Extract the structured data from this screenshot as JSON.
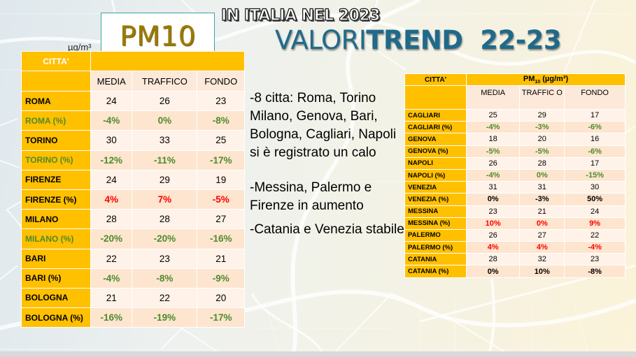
{
  "header": {
    "unit": "µg/m³",
    "pm10_badge": "PM10",
    "subtitle": "IN ITALIA NEL 2023",
    "title_part1": "VALORI",
    "title_part2": "TREND  22-23"
  },
  "colors": {
    "header_fill": "#ffc000",
    "decrease": "#4e8a2c",
    "increase": "#ff0000",
    "stable": "#000000",
    "title": "#1f6a8a"
  },
  "left_table": {
    "city_header": "CITTA'",
    "columns": [
      "MEDIA",
      "TRAFFICO",
      "FONDO"
    ],
    "rows": [
      {
        "city": "ROMA",
        "values": [
          "24",
          "26",
          "23"
        ],
        "style": "plain"
      },
      {
        "city": "ROMA (%)",
        "values": [
          "-4%",
          "0%",
          "-8%"
        ],
        "style": "green",
        "city_style": "green"
      },
      {
        "city": "TORINO",
        "values": [
          "30",
          "33",
          "25"
        ],
        "style": "plain"
      },
      {
        "city": "TORINO (%)",
        "values": [
          "-12%",
          "-11%",
          "-17%"
        ],
        "style": "green",
        "city_style": "green"
      },
      {
        "city": "FIRENZE",
        "values": [
          "24",
          "29",
          "19"
        ],
        "style": "plain"
      },
      {
        "city": "FIRENZE (%)",
        "values": [
          "4%",
          "7%",
          "-5%"
        ],
        "style": "red"
      },
      {
        "city": "MILANO",
        "values": [
          "28",
          "28",
          "27"
        ],
        "style": "plain"
      },
      {
        "city": "MILANO (%)",
        "values": [
          "-20%",
          "-20%",
          "-16%"
        ],
        "style": "green",
        "city_style": "green"
      },
      {
        "city": "BARI",
        "values": [
          "22",
          "23",
          "21"
        ],
        "style": "plain"
      },
      {
        "city": "BARI (%)",
        "values": [
          "-4%",
          "-8%",
          "-9%"
        ],
        "style": "green"
      },
      {
        "city": "BOLOGNA",
        "values": [
          "21",
          "22",
          "20"
        ],
        "style": "plain"
      },
      {
        "city": "BOLOGNA (%)",
        "values": [
          "-16%",
          "-19%",
          "-17%"
        ],
        "style": "green"
      }
    ]
  },
  "notes": [
    "-8 citta: Roma, Torino Milano, Genova, Bari, Bologna, Cagliari, Napoli si è registrato un calo",
    "-Messina, Palermo e Firenze in aumento",
    "-Catania e Venezia stabile"
  ],
  "right_table": {
    "city_header": "CITTA'",
    "group_header": "PM",
    "group_header_sub": "10",
    "group_header_unit": " (µg/m³)",
    "columns": [
      "MEDIA",
      "TRAFFIC O",
      "FONDO"
    ],
    "rows": [
      {
        "city": "CAGLIARI",
        "values": [
          "25",
          "29",
          "17"
        ],
        "style": "plain"
      },
      {
        "city": "CAGLIARI (%)",
        "values": [
          "-4%",
          "-3%",
          "-6%"
        ],
        "style": "green"
      },
      {
        "city": "GENOVA",
        "values": [
          "18",
          "20",
          "16"
        ],
        "style": "plain"
      },
      {
        "city": "GENOVA (%)",
        "values": [
          "-5%",
          "-5%",
          "-6%"
        ],
        "style": "green"
      },
      {
        "city": "NAPOLI",
        "values": [
          "26",
          "28",
          "17"
        ],
        "style": "plain"
      },
      {
        "city": "NAPOLI (%)",
        "values": [
          "-4%",
          "0%",
          "-15%"
        ],
        "style": "green"
      },
      {
        "city": "VENEZIA",
        "values": [
          "31",
          "31",
          "30"
        ],
        "style": "plain"
      },
      {
        "city": "VENEZIA (%)",
        "values": [
          "0%",
          "-3%",
          "50%"
        ],
        "style": "black"
      },
      {
        "city": "MESSINA",
        "values": [
          "23",
          "21",
          "24"
        ],
        "style": "plain"
      },
      {
        "city": "MESSINA (%)",
        "values": [
          "10%",
          "0%",
          "9%"
        ],
        "style": "red"
      },
      {
        "city": "PALERMO",
        "values": [
          "26",
          "27",
          "22"
        ],
        "style": "plain"
      },
      {
        "city": "PALERMO (%)",
        "values": [
          "4%",
          "4%",
          "-4%"
        ],
        "style": "red"
      },
      {
        "city": "CATANIA",
        "values": [
          "28",
          "32",
          "23"
        ],
        "style": "plain"
      },
      {
        "city": "CATANIA (%)",
        "values": [
          "0%",
          "10%",
          "-8%"
        ],
        "style": "black"
      }
    ]
  }
}
